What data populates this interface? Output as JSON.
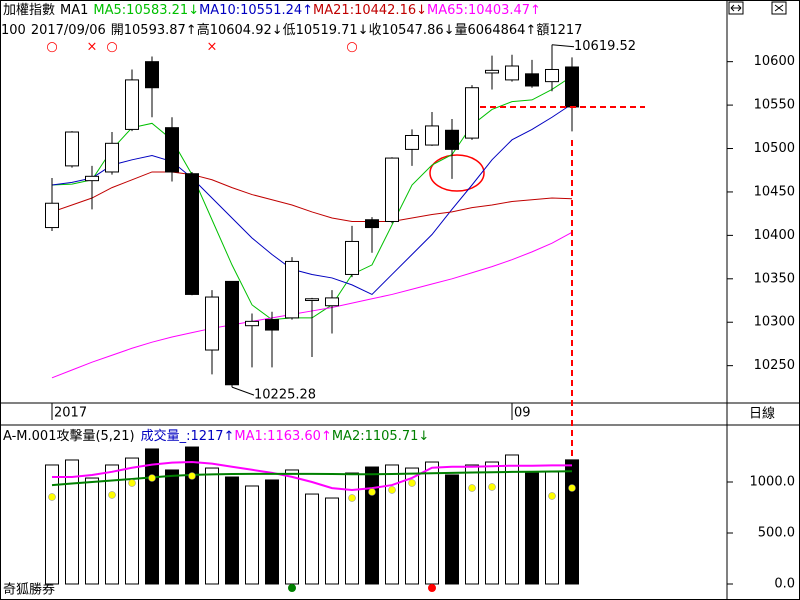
{
  "chart_data": [
    {
      "type": "candlestick",
      "title": "加權指數",
      "subtitle": "MA1",
      "info": [
        "100",
        "2017/09/06",
        "開10593.87↑",
        "高10604.92↓",
        "低10519.71↓",
        "收10547.86↓",
        "量6064864↑",
        "額1217"
      ],
      "categories": [
        "2017",
        null,
        null,
        null,
        null,
        null,
        null,
        null,
        null,
        null,
        null,
        null,
        null,
        null,
        null,
        null,
        null,
        null,
        null,
        null,
        null,
        null,
        null,
        "09",
        null,
        null,
        null
      ],
      "open": [
        10409,
        10480,
        10463,
        10473,
        10522,
        10600,
        10524,
        10471,
        10268,
        10347,
        10296,
        10303,
        10305,
        10325,
        10319,
        10355,
        10418,
        10416,
        10499,
        10504,
        10521,
        10512,
        10587,
        10579,
        10586,
        10577,
        10593.87
      ],
      "high": [
        10466,
        10520,
        10480,
        10519,
        10591,
        10606,
        10536,
        10473,
        10337,
        10347,
        10310,
        10312,
        10375,
        10328,
        10337,
        10411,
        10421,
        10490,
        10522,
        10542,
        10534,
        10573,
        10607,
        10608,
        10602,
        10619.52,
        10604.92
      ],
      "low": [
        10405,
        10478,
        10430,
        10470,
        10520,
        10536,
        10462,
        10331,
        10240,
        10225.28,
        10248,
        10248,
        10303,
        10260,
        10287,
        10352,
        10380,
        10414,
        10480,
        10503,
        10465,
        10510,
        10568,
        10577,
        10570,
        10566,
        10519.71
      ],
      "close": [
        10437,
        10519,
        10468,
        10506,
        10579,
        10570,
        10473,
        10332,
        10329,
        10228,
        10301,
        10291,
        10370,
        10327,
        10328,
        10393,
        10409,
        10489,
        10515,
        10526,
        10499,
        10570,
        10590,
        10595,
        10572,
        10591,
        10547.86
      ],
      "candle_color": "#000000",
      "signals": [
        "○",
        null,
        "×",
        "○",
        null,
        null,
        null,
        null,
        "×",
        null,
        null,
        null,
        null,
        null,
        null,
        "○",
        null,
        null,
        null,
        null,
        null,
        null,
        null,
        null,
        null,
        null,
        null
      ],
      "signal_color": "#ff0000",
      "annotations": [
        "10619.52",
        "10225.28"
      ],
      "series": [
        {
          "name": "MA5:10583.21↓",
          "color": "#00c000",
          "values": [
            10458,
            10459,
            10464,
            10499,
            10524,
            10529,
            10510,
            10470,
            10418,
            10366,
            10320,
            10303,
            10305,
            10305,
            10320,
            10355,
            10366,
            10412,
            10458,
            10481,
            10493,
            10527,
            10545,
            10554,
            10556,
            10568,
            10583.21
          ]
        },
        {
          "name": "MA10:10551.24↑",
          "color": "#0000c0",
          "values": [
            10458,
            10461,
            10466,
            10481,
            10487,
            10492,
            10485,
            10466,
            10443,
            10420,
            10397,
            10378,
            10361,
            10355,
            10351,
            10343,
            10332,
            10355,
            10378,
            10401,
            10430,
            10458,
            10487,
            10510,
            10522,
            10536,
            10551.24
          ]
        },
        {
          "name": "MA21:10442.16↓",
          "color": "#c00000",
          "values": [
            10427,
            10435,
            10443,
            10455,
            10464,
            10473,
            10473,
            10470,
            10464,
            10455,
            10447,
            10441,
            10435,
            10427,
            10420,
            10416,
            10416,
            10416,
            10420,
            10424,
            10427,
            10432,
            10435,
            10439,
            10441,
            10443,
            10442.16
          ]
        },
        {
          "name": "MA65:10403.47↑",
          "color": "#ff00ff",
          "values": [
            10236,
            10245,
            10254,
            10262,
            10270,
            10277,
            10283,
            10288,
            10293,
            10297,
            10301,
            10305,
            10309,
            10313,
            10317,
            10322,
            10327,
            10332,
            10338,
            10344,
            10350,
            10357,
            10364,
            10372,
            10381,
            10391,
            10403.47
          ]
        }
      ],
      "ylim": [
        10207,
        10671
      ],
      "yticks": [
        10250,
        10300,
        10350,
        10400,
        10450,
        10500,
        10550,
        10600
      ],
      "period": "日線"
    },
    {
      "type": "bar",
      "title": "A-M.001攻擊量(5,21)",
      "series": [
        {
          "name": "成交量_:1217↑",
          "color": "#0000c0",
          "values": [
            1167,
            1216,
            1039,
            1167,
            1235,
            1324,
            1118,
            1343,
            1137,
            1049,
            961,
            1020,
            1118,
            882,
            843,
            1088,
            1147,
            1167,
            1137,
            1196,
            1069,
            1167,
            1196,
            1265,
            1088,
            1098,
            1217
          ]
        },
        {
          "name": "MA1:1163.60↑",
          "color": "#ff00ff",
          "values": [
            1049,
            1049,
            1069,
            1100,
            1140,
            1170,
            1190,
            1196,
            1180,
            1150,
            1120,
            1090,
            1050,
            1000,
            940,
            922,
            940,
            970,
            1040,
            1140,
            1150,
            1150,
            1155,
            1160,
            1160,
            1163,
            1163.6
          ]
        },
        {
          "name": "MA2:1105.71↓",
          "color": "#008000",
          "values": [
            970,
            985,
            1000,
            1015,
            1030,
            1045,
            1060,
            1070,
            1075,
            1078,
            1080,
            1080,
            1080,
            1080,
            1078,
            1076,
            1076,
            1078,
            1082,
            1086,
            1090,
            1093,
            1096,
            1099,
            1101,
            1103,
            1105.71
          ]
        },
        {
          "color": "#ffff00",
          "values": [
            853,
            null,
            null,
            873,
            990,
            1039,
            null,
            1059,
            null,
            null,
            null,
            null,
            null,
            null,
            null,
            843,
            902,
            922,
            990,
            null,
            null,
            941,
            951,
            null,
            null,
            863,
            941
          ]
        }
      ],
      "bottom_marks": [
        null,
        null,
        null,
        null,
        null,
        null,
        null,
        null,
        null,
        null,
        null,
        null,
        "#008000",
        null,
        null,
        null,
        null,
        null,
        null,
        "#ff0000",
        null,
        null,
        null,
        null,
        null,
        null,
        null
      ],
      "ylim": [
        -157,
        1559
      ],
      "yticks": [
        {
          "value": 0,
          "label": "0.0"
        },
        {
          "value": 500,
          "label": "500.0"
        },
        {
          "value": 1000,
          "label": "1000.0"
        }
      ],
      "footer": "奇狐勝券"
    }
  ]
}
